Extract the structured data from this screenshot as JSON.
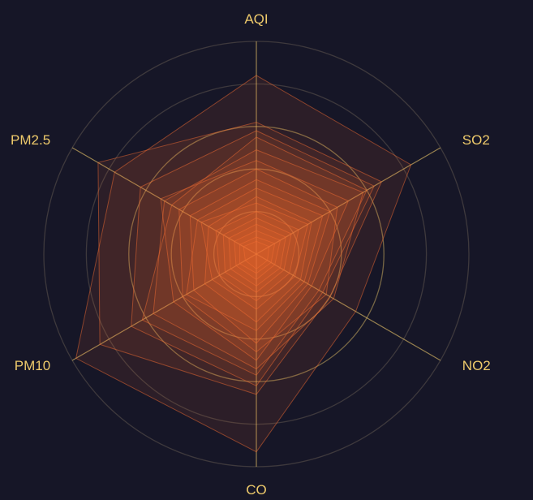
{
  "chart_data": {
    "type": "radar",
    "title": "",
    "indicators": [
      "AQI",
      "SO2",
      "NO2",
      "CO",
      "PM10",
      "PM2.5"
    ],
    "max": 1,
    "rings": 5,
    "series": [
      {
        "values": [
          0.84,
          0.84,
          0.54,
          0.93,
          0.98,
          0.77
        ]
      },
      {
        "values": [
          0.62,
          0.68,
          0.4,
          0.66,
          0.85,
          0.86
        ]
      },
      {
        "values": [
          0.58,
          0.64,
          0.36,
          0.62,
          0.68,
          0.63
        ]
      },
      {
        "values": [
          0.55,
          0.6,
          0.34,
          0.57,
          0.62,
          0.46
        ]
      },
      {
        "values": [
          0.49,
          0.58,
          0.42,
          0.54,
          0.56,
          0.5
        ]
      },
      {
        "values": [
          0.44,
          0.5,
          0.3,
          0.5,
          0.45,
          0.52
        ]
      },
      {
        "values": [
          0.4,
          0.44,
          0.38,
          0.46,
          0.4,
          0.42
        ]
      },
      {
        "values": [
          0.35,
          0.4,
          0.28,
          0.42,
          0.34,
          0.36
        ]
      },
      {
        "values": [
          0.31,
          0.36,
          0.26,
          0.36,
          0.38,
          0.32
        ]
      },
      {
        "values": [
          0.27,
          0.3,
          0.24,
          0.32,
          0.28,
          0.26
        ]
      },
      {
        "values": [
          0.24,
          0.28,
          0.21,
          0.26,
          0.24,
          0.3
        ]
      },
      {
        "values": [
          0.2,
          0.23,
          0.18,
          0.22,
          0.2,
          0.22
        ]
      },
      {
        "values": [
          0.17,
          0.19,
          0.15,
          0.18,
          0.17,
          0.18
        ]
      },
      {
        "values": [
          0.14,
          0.16,
          0.13,
          0.15,
          0.14,
          0.15
        ]
      },
      {
        "values": [
          0.11,
          0.13,
          0.1,
          0.12,
          0.11,
          0.12
        ]
      },
      {
        "values": [
          0.08,
          0.1,
          0.08,
          0.09,
          0.09,
          0.09
        ]
      },
      {
        "values": [
          0.06,
          0.07,
          0.06,
          0.07,
          0.06,
          0.07
        ]
      }
    ]
  },
  "colors": {
    "background": "#161627",
    "area": "#f26b32",
    "line": "#f26b32",
    "axis_line": "#eeca6b",
    "axis_label": "#eeca6b"
  }
}
